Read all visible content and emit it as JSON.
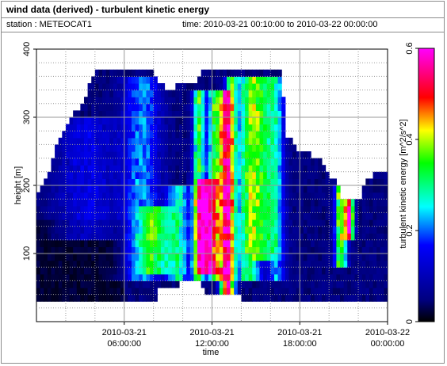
{
  "header": {
    "title": "wind data (derived) - turbulent kinetic energy",
    "station": "station : METEOCAT1",
    "time_range": "time: 2010-03-21 00:10:00 to 2010-03-22 00:00:00"
  },
  "chart_data": {
    "type": "heatmap",
    "title": "wind data (derived) - turbulent kinetic energy",
    "xlabel": "time",
    "ylabel": "height [m]",
    "colorbar_label": "turbulent kinetic energy [m^2/s^2]",
    "x_ticks": [
      {
        "value": 6,
        "line1": "2010-03-21",
        "line2": "06:00:00"
      },
      {
        "value": 12,
        "line1": "2010-03-21",
        "line2": "12:00:00"
      },
      {
        "value": 18,
        "line1": "2010-03-21",
        "line2": "18:00:00"
      },
      {
        "value": 24,
        "line1": "2010-03-22",
        "line2": "00:00:00"
      }
    ],
    "xlim_hours": [
      0,
      24
    ],
    "y_ticks": [
      100,
      200,
      300,
      400
    ],
    "ylim": [
      0,
      400
    ],
    "colorbar_ticks": [
      "0",
      "0.2",
      "0.4",
      "0.6"
    ],
    "colorbar_range": [
      0,
      0.6
    ],
    "colormap": [
      "#000000",
      "#000080",
      "#0000ff",
      "#00ffff",
      "#00ff00",
      "#ffff00",
      "#ff0000",
      "#ff00ff"
    ],
    "min_height_m": 35,
    "top_envelope": [
      {
        "t": 0,
        "h": 190
      },
      {
        "t": 0.5,
        "h": 200
      },
      {
        "t": 1.0,
        "h": 230
      },
      {
        "t": 1.5,
        "h": 265
      },
      {
        "t": 2.0,
        "h": 290
      },
      {
        "t": 2.5,
        "h": 305
      },
      {
        "t": 3.0,
        "h": 315
      },
      {
        "t": 3.5,
        "h": 340
      },
      {
        "t": 4.0,
        "h": 365
      },
      {
        "t": 8.0,
        "h": 365
      },
      {
        "t": 8.5,
        "h": 350
      },
      {
        "t": 9.0,
        "h": 335
      },
      {
        "t": 9.5,
        "h": 345
      },
      {
        "t": 11.0,
        "h": 345
      },
      {
        "t": 11.2,
        "h": 365
      },
      {
        "t": 16.8,
        "h": 365
      },
      {
        "t": 17.0,
        "h": 270
      },
      {
        "t": 17.5,
        "h": 265
      },
      {
        "t": 18.0,
        "h": 250
      },
      {
        "t": 19.5,
        "h": 240
      },
      {
        "t": 20.0,
        "h": 215
      },
      {
        "t": 20.5,
        "h": 205
      },
      {
        "t": 21.0,
        "h": 175
      },
      {
        "t": 22.0,
        "h": 175
      },
      {
        "t": 22.5,
        "h": 205
      },
      {
        "t": 23.0,
        "h": 215
      },
      {
        "t": 24.0,
        "h": 215
      }
    ],
    "bottom_envelope": [
      {
        "t": 0,
        "h": 35
      },
      {
        "t": 8.2,
        "h": 35
      },
      {
        "t": 8.3,
        "h": 55
      },
      {
        "t": 9.8,
        "h": 55
      },
      {
        "t": 9.9,
        "h": 60
      },
      {
        "t": 11.3,
        "h": 60
      },
      {
        "t": 11.4,
        "h": 40
      },
      {
        "t": 14.0,
        "h": 40
      },
      {
        "t": 14.1,
        "h": 35
      },
      {
        "t": 24.0,
        "h": 35
      }
    ],
    "features": [
      {
        "t": 3.5,
        "h_from": 120,
        "h_to": 300,
        "tke": 0.1,
        "width": 2.0
      },
      {
        "t": 7.2,
        "h_from": 60,
        "h_to": 360,
        "tke": 0.18,
        "width": 1.2
      },
      {
        "t": 8.2,
        "h_from": 70,
        "h_to": 170,
        "tke": 0.22,
        "width": 1.0
      },
      {
        "t": 9.7,
        "h_from": 60,
        "h_to": 200,
        "tke": 0.24,
        "width": 0.8
      },
      {
        "t": 11.1,
        "h_from": 60,
        "h_to": 340,
        "tke": 0.32,
        "width": 0.4
      },
      {
        "t": 11.6,
        "h_from": 70,
        "h_to": 210,
        "tke": 0.45,
        "width": 0.6
      },
      {
        "t": 12.2,
        "h_from": 60,
        "h_to": 340,
        "tke": 0.3,
        "width": 0.5
      },
      {
        "t": 12.9,
        "h_from": 40,
        "h_to": 340,
        "tke": 0.4,
        "width": 0.4
      },
      {
        "t": 13.3,
        "h_from": 40,
        "h_to": 360,
        "tke": 0.28,
        "width": 0.4
      },
      {
        "t": 14.5,
        "h_from": 60,
        "h_to": 360,
        "tke": 0.3,
        "width": 0.8
      },
      {
        "t": 15.5,
        "h_from": 90,
        "h_to": 360,
        "tke": 0.22,
        "width": 0.8
      },
      {
        "t": 16.4,
        "h_from": 60,
        "h_to": 360,
        "tke": 0.18,
        "width": 0.6
      },
      {
        "t": 20.8,
        "h_from": 80,
        "h_to": 200,
        "tke": 0.38,
        "width": 0.4
      },
      {
        "t": 21.4,
        "h_from": 120,
        "h_to": 175,
        "tke": 0.5,
        "width": 0.3
      }
    ]
  }
}
